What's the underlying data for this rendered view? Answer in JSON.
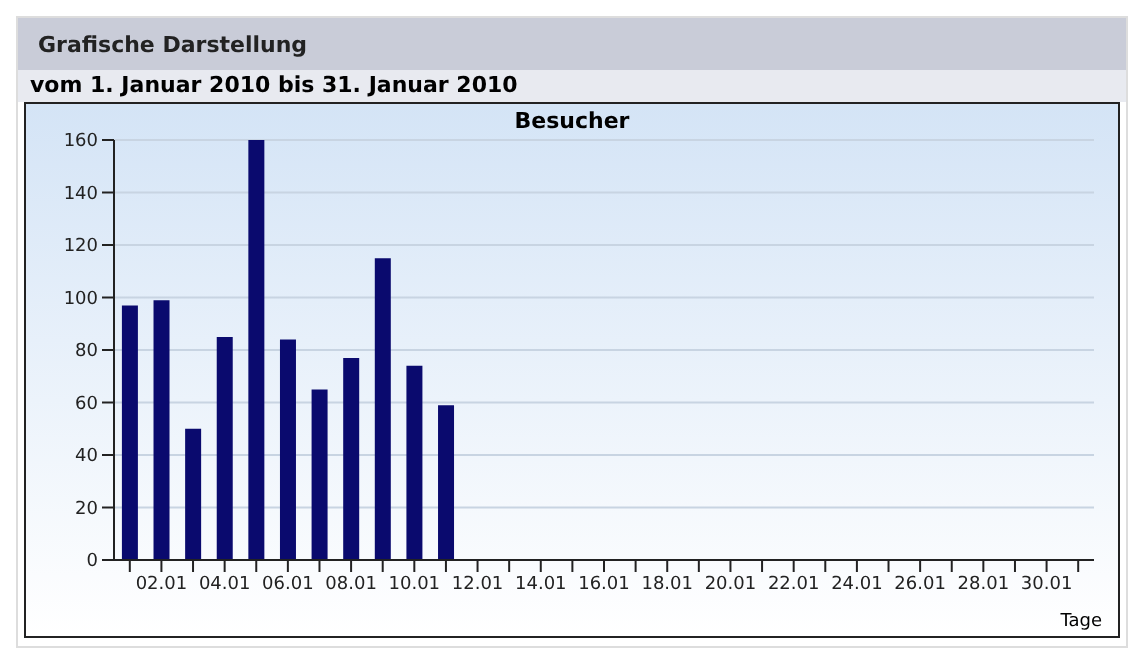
{
  "chart_data": {
    "type": "bar",
    "title": "Besucher",
    "subtitle": "vom 1. Januar 2010  bis  31. Januar 2010",
    "annotations": [
      "Grafische Darstellung"
    ],
    "xlabel": "Tage",
    "categories": [
      null,
      "02.01",
      null,
      "04.01",
      null,
      "06.01",
      null,
      "08.01",
      null,
      "10.01",
      null,
      "12.01",
      null,
      "14.01",
      null,
      "16.01",
      null,
      "18.01",
      null,
      "20.01",
      null,
      "22.01",
      null,
      "24.01",
      null,
      "26.01",
      null,
      "28.01",
      null,
      "30.01",
      null
    ],
    "values": [
      97,
      99,
      50,
      85,
      160,
      84,
      65,
      77,
      115,
      74,
      59,
      null,
      null,
      null,
      null,
      null,
      null,
      null,
      null,
      null,
      null,
      null,
      null,
      null,
      null,
      null,
      null,
      null,
      null,
      null,
      null
    ],
    "color": "#0a0a6e",
    "ylim": [
      0,
      160
    ],
    "yticks": [
      0,
      20,
      40,
      60,
      80,
      100,
      120,
      140,
      160
    ],
    "grid": "y"
  }
}
